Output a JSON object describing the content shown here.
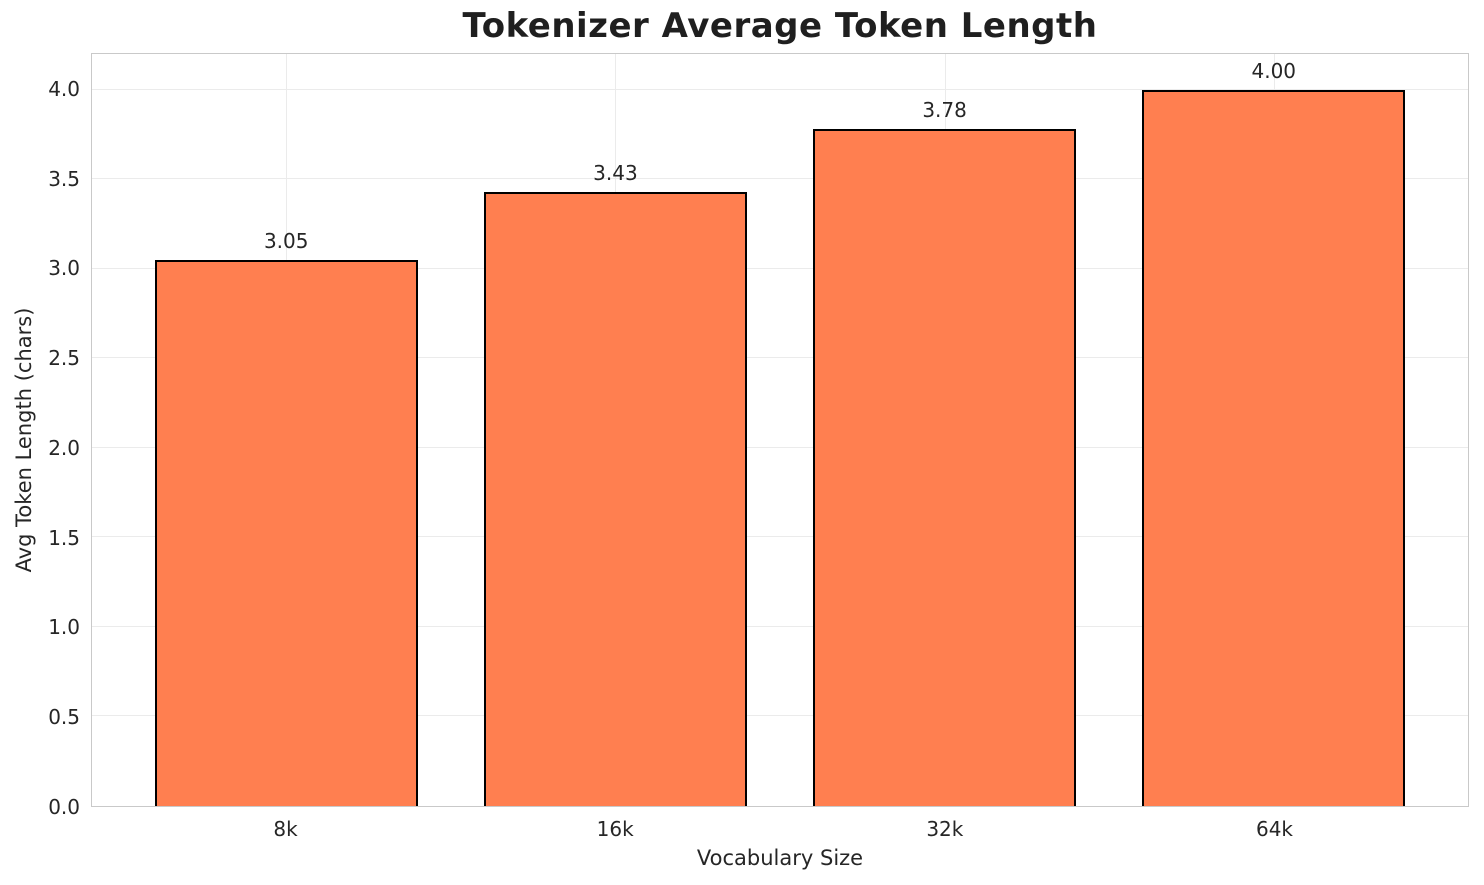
{
  "chart_data": {
    "type": "bar",
    "title": "Tokenizer Average Token Length",
    "xlabel": "Vocabulary Size",
    "ylabel": "Avg Token Length (chars)",
    "categories": [
      "8k",
      "16k",
      "32k",
      "64k"
    ],
    "values": [
      3.05,
      3.43,
      3.78,
      4.0
    ],
    "bar_labels": [
      "3.05",
      "3.43",
      "3.78",
      "4.00"
    ],
    "yticks": [
      0.0,
      0.5,
      1.0,
      1.5,
      2.0,
      2.5,
      3.0,
      3.5,
      4.0
    ],
    "ytick_labels": [
      "0.0",
      "0.5",
      "1.0",
      "1.5",
      "2.0",
      "2.5",
      "3.0",
      "3.5",
      "4.0"
    ],
    "ylim": [
      0,
      4.2
    ],
    "grid": true,
    "legend": null,
    "bar_color": "#FF7F50",
    "bar_edge_color": "#000000",
    "grid_color": "#ebebeb",
    "spine_color": "#c9c9c9",
    "text_color": "#262626"
  }
}
